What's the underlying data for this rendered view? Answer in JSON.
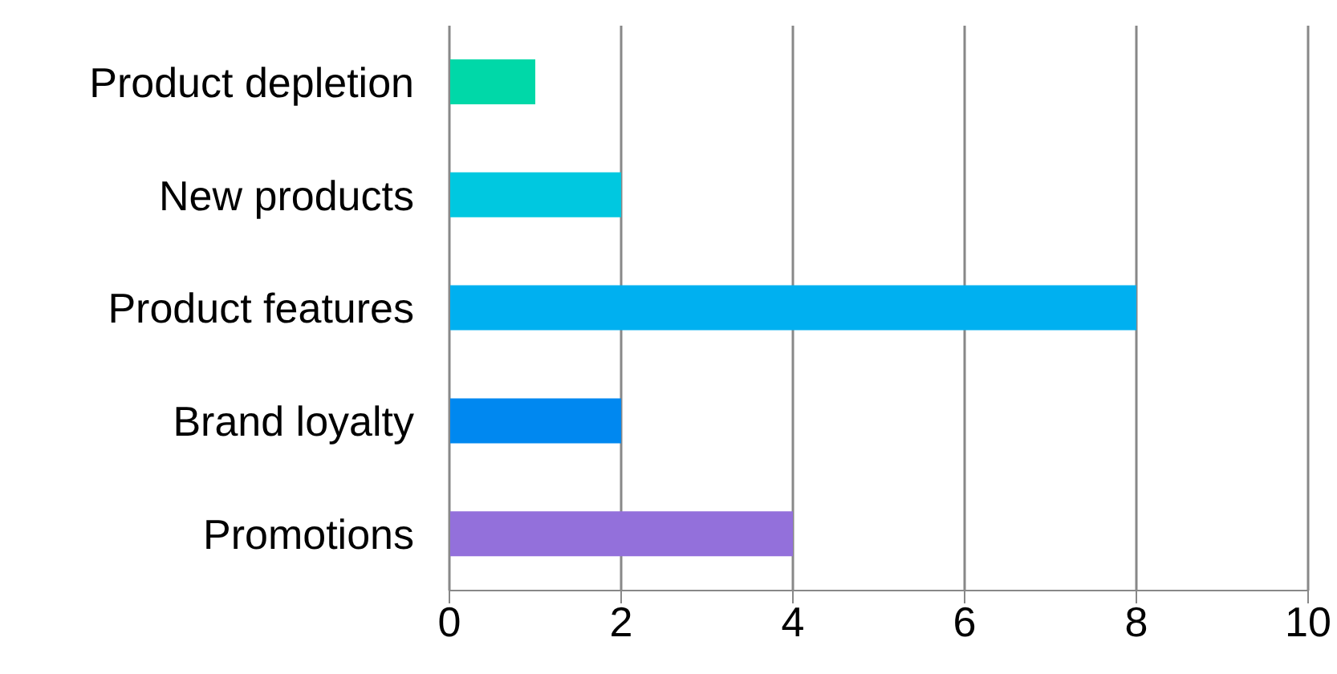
{
  "chart_data": {
    "type": "bar",
    "orientation": "horizontal",
    "categories": [
      "Product depletion",
      "New products",
      "Product features",
      "Brand loyalty",
      "Promotions"
    ],
    "values": [
      1,
      2,
      8,
      2,
      4
    ],
    "colors": [
      "#00d8a8",
      "#00c8e0",
      "#00b0f0",
      "#0088f0",
      "#9370db"
    ],
    "xlim": [
      0,
      10
    ],
    "xticks": [
      0,
      2,
      4,
      6,
      8,
      10
    ],
    "grid": "x"
  }
}
